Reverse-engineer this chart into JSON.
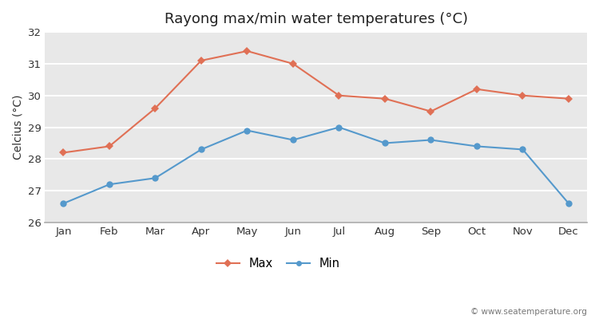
{
  "title": "Rayong max/min water temperatures (°C)",
  "ylabel": "Celcius (°C)",
  "months": [
    "Jan",
    "Feb",
    "Mar",
    "Apr",
    "May",
    "Jun",
    "Jul",
    "Aug",
    "Sep",
    "Oct",
    "Nov",
    "Dec"
  ],
  "max_temps": [
    28.2,
    28.4,
    29.6,
    31.1,
    31.4,
    31.0,
    30.0,
    29.9,
    29.5,
    30.2,
    30.0,
    29.9
  ],
  "min_temps": [
    26.6,
    27.2,
    27.4,
    28.3,
    28.9,
    28.6,
    29.0,
    28.5,
    28.6,
    28.4,
    28.3,
    26.6
  ],
  "max_color": "#E07055",
  "min_color": "#5599CC",
  "outer_bg": "#ffffff",
  "plot_bg": "#E8E8E8",
  "grid_color": "#ffffff",
  "spine_color": "#aaaaaa",
  "ylim": [
    26,
    32
  ],
  "yticks": [
    26,
    27,
    28,
    29,
    30,
    31,
    32
  ],
  "legend_labels": [
    "Max",
    "Min"
  ],
  "watermark": "© www.seatemperature.org",
  "title_fontsize": 13,
  "label_fontsize": 10,
  "tick_fontsize": 9.5,
  "watermark_fontsize": 7.5
}
